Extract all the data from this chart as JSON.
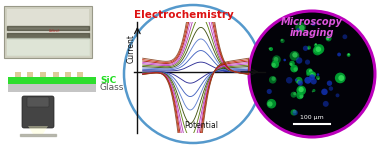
{
  "bg_color": "#ffffff",
  "left_panel": {
    "photo_bg": "#d0d0c0",
    "photo_inner": "#c8c8b8",
    "sic_color": "#22dd22",
    "glass_color": "#bbbbbb",
    "sic_label": "SiC",
    "glass_label": "Glass",
    "bump_color": "#ddcc99"
  },
  "center_panel": {
    "title": "Electrochemistry",
    "title_color": "#dd1111",
    "xlabel": "Potential",
    "ylabel": "Current",
    "circle_color": "#5599cc",
    "circle_lw": 1.8,
    "cv_colors": [
      "#1a1a8c",
      "#3355bb",
      "#5577cc",
      "#334400",
      "#557700",
      "#aa33aa",
      "#cc44cc",
      "#991100",
      "#cc2200",
      "#884422"
    ],
    "n_curves": 8
  },
  "right_panel": {
    "title1": "Microscopy",
    "title2": "imaging",
    "title_color": "#dd55dd",
    "circle_border": "#bb00bb",
    "bg_color": "#020208",
    "scale_bar_label": "100 μm",
    "scale_bar_color": "#ffffff"
  }
}
